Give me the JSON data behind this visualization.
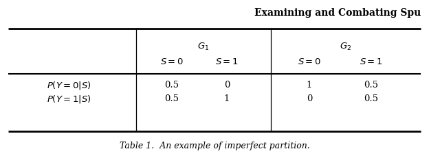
{
  "title_right": "Examining and Combating Spu",
  "caption_bold": "Table 1.",
  "caption_rest": "  An example of imperfect partition.",
  "bg_color": "#ffffff",
  "text_color": "#000000",
  "data": [
    [
      "0.5",
      "0",
      "1",
      "0.5"
    ],
    [
      "0.5",
      "1",
      "0",
      "0.5"
    ]
  ],
  "figsize": [
    6.24,
    2.34
  ],
  "dpi": 100
}
